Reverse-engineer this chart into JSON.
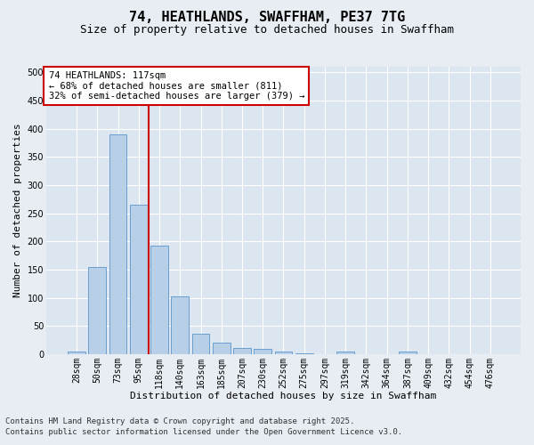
{
  "title_line1": "74, HEATHLANDS, SWAFFHAM, PE37 7TG",
  "title_line2": "Size of property relative to detached houses in Swaffham",
  "xlabel": "Distribution of detached houses by size in Swaffham",
  "ylabel": "Number of detached properties",
  "categories": [
    "28sqm",
    "50sqm",
    "73sqm",
    "95sqm",
    "118sqm",
    "140sqm",
    "163sqm",
    "185sqm",
    "207sqm",
    "230sqm",
    "252sqm",
    "275sqm",
    "297sqm",
    "319sqm",
    "342sqm",
    "364sqm",
    "387sqm",
    "409sqm",
    "432sqm",
    "454sqm",
    "476sqm"
  ],
  "values": [
    5,
    155,
    390,
    265,
    193,
    102,
    36,
    20,
    10,
    9,
    5,
    2,
    0,
    5,
    0,
    0,
    5,
    0,
    0,
    0,
    0
  ],
  "bar_color": "#b8cfe8",
  "bar_edge_color": "#6a9fd0",
  "vline_x_index": 4,
  "vline_color": "#cc0000",
  "annotation_text": "74 HEATHLANDS: 117sqm\n← 68% of detached houses are smaller (811)\n32% of semi-detached houses are larger (379) →",
  "annotation_box_color": "#ffffff",
  "annotation_box_edge": "#cc0000",
  "ylim": [
    0,
    510
  ],
  "yticks": [
    0,
    50,
    100,
    150,
    200,
    250,
    300,
    350,
    400,
    450,
    500
  ],
  "background_color": "#e8edf4",
  "plot_bg_color": "#dce6f0",
  "grid_color": "#ffffff",
  "footer_line1": "Contains HM Land Registry data © Crown copyright and database right 2025.",
  "footer_line2": "Contains public sector information licensed under the Open Government Licence v3.0.",
  "title_fontsize": 11,
  "subtitle_fontsize": 9,
  "axis_label_fontsize": 8,
  "tick_fontsize": 7,
  "annotation_fontsize": 7.5,
  "footer_fontsize": 6.5
}
